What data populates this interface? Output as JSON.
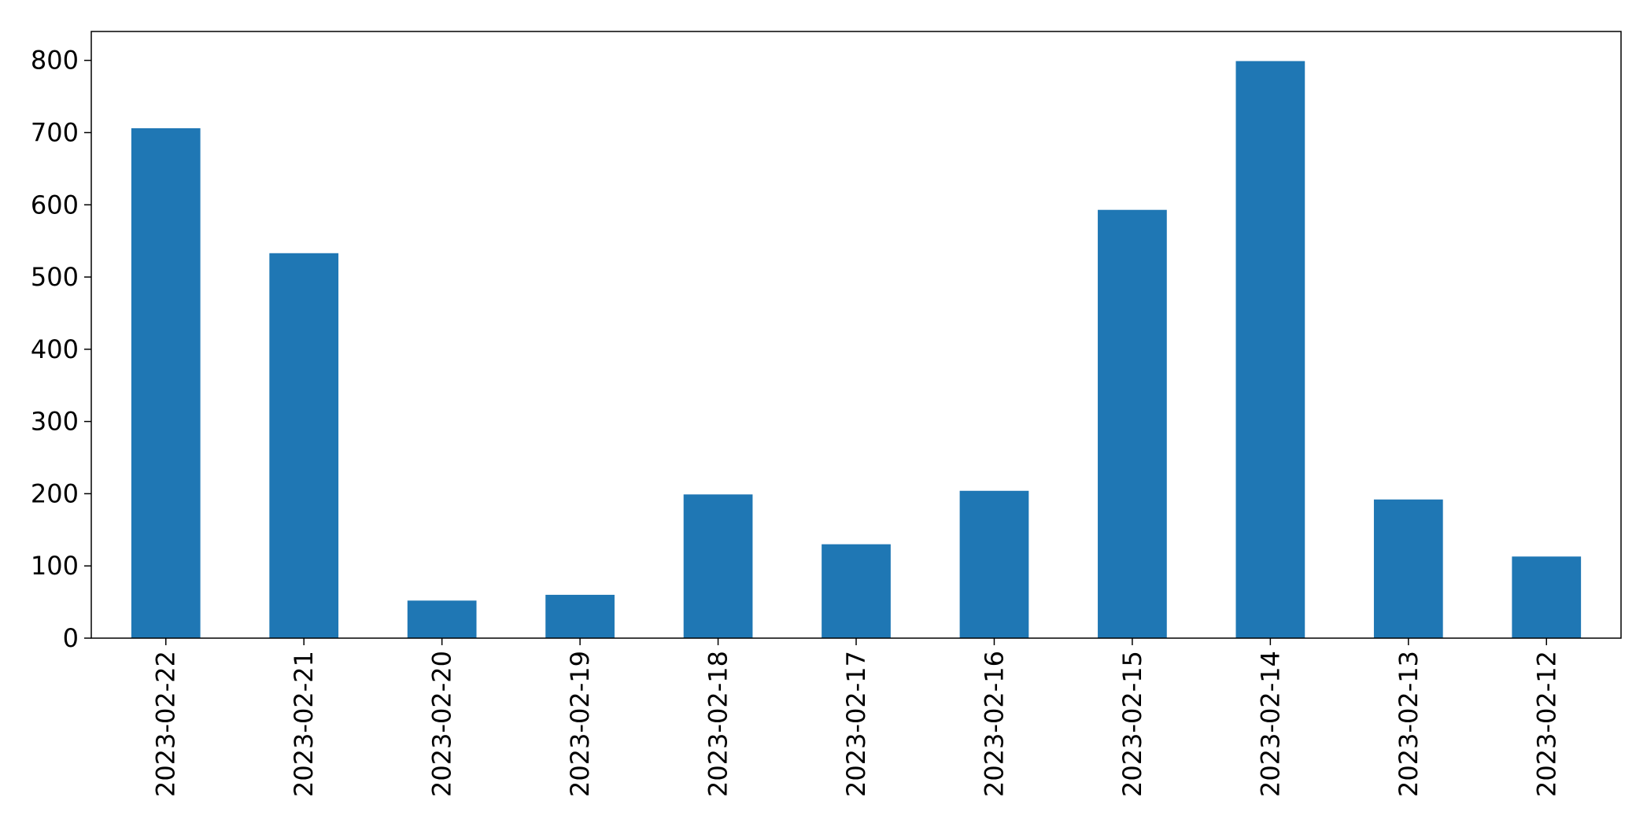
{
  "chart_data": {
    "type": "bar",
    "title": "",
    "xlabel": "",
    "ylabel": "",
    "categories": [
      "2023-02-22",
      "2023-02-21",
      "2023-02-20",
      "2023-02-19",
      "2023-02-18",
      "2023-02-17",
      "2023-02-16",
      "2023-02-15",
      "2023-02-14",
      "2023-02-13",
      "2023-02-12"
    ],
    "values": [
      706,
      533,
      52,
      60,
      199,
      130,
      204,
      593,
      799,
      192,
      113
    ],
    "ylim": [
      0,
      840
    ],
    "yticks": [
      0,
      100,
      200,
      300,
      400,
      500,
      600,
      700,
      800
    ],
    "xtick_rotation": "vertical",
    "grid": false,
    "legend": "none",
    "bar_color": "#1f77b4"
  }
}
